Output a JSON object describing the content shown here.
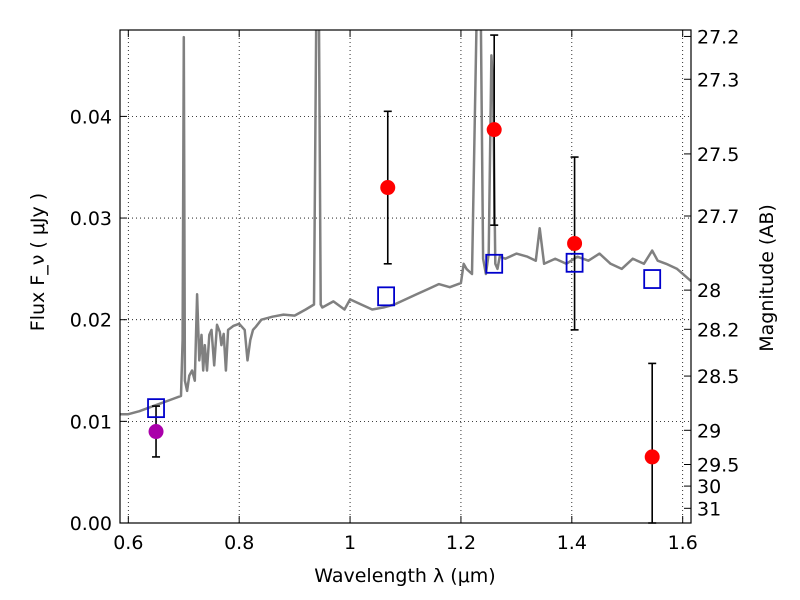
{
  "chart_data": {
    "type": "scatter",
    "xlabel": "Wavelength  λ (μm)",
    "ylabel": "Flux  F_ν  ( μJy )",
    "ylabel_right": "Magnitude (AB)",
    "xlim": [
      0.585,
      1.615
    ],
    "ylim": [
      0.0,
      0.0485
    ],
    "grid": true,
    "x_ticks": [
      0.6,
      0.8,
      1.0,
      1.2,
      1.4,
      1.6
    ],
    "x_tick_labels": [
      "0.6",
      "0.8",
      "1",
      "1.2",
      "1.4",
      "1.6"
    ],
    "y_ticks": [
      0.0,
      0.01,
      0.02,
      0.03,
      0.04
    ],
    "y_tick_labels": [
      "0.00",
      "0.01",
      "0.02",
      "0.03",
      "0.04"
    ],
    "right_ticks": [
      27.2,
      27.3,
      27.5,
      27.7,
      28,
      28.2,
      28.5,
      29,
      29.5,
      30,
      31
    ],
    "right_tick_labels": [
      "27.2",
      "27.3",
      "27.5",
      "27.7",
      "28",
      "28.2",
      "28.5",
      "29",
      "29.5",
      "30",
      "31"
    ],
    "model_spectrum": {
      "color": "#808080",
      "x": [
        0.585,
        0.6,
        0.62,
        0.64,
        0.66,
        0.68,
        0.695,
        0.698,
        0.7,
        0.702,
        0.706,
        0.71,
        0.715,
        0.72,
        0.724,
        0.728,
        0.732,
        0.735,
        0.738,
        0.742,
        0.746,
        0.75,
        0.755,
        0.76,
        0.765,
        0.768,
        0.772,
        0.776,
        0.78,
        0.79,
        0.8,
        0.81,
        0.815,
        0.82,
        0.825,
        0.83,
        0.84,
        0.86,
        0.88,
        0.9,
        0.92,
        0.935,
        0.939,
        0.941,
        0.944,
        0.947,
        0.95,
        0.97,
        0.99,
        1.0,
        1.02,
        1.04,
        1.06,
        1.08,
        1.1,
        1.12,
        1.14,
        1.16,
        1.18,
        1.2,
        1.205,
        1.21,
        1.22,
        1.228,
        1.232,
        1.236,
        1.24,
        1.245,
        1.25,
        1.255,
        1.258,
        1.262,
        1.266,
        1.27,
        1.28,
        1.3,
        1.32,
        1.335,
        1.342,
        1.35,
        1.37,
        1.39,
        1.41,
        1.43,
        1.45,
        1.47,
        1.49,
        1.51,
        1.53,
        1.545,
        1.555,
        1.57,
        1.59,
        1.615
      ],
      "y": [
        0.0107,
        0.0107,
        0.011,
        0.0114,
        0.0118,
        0.0122,
        0.0125,
        0.018,
        0.0478,
        0.014,
        0.013,
        0.0145,
        0.015,
        0.014,
        0.0225,
        0.016,
        0.0185,
        0.015,
        0.0175,
        0.015,
        0.0185,
        0.019,
        0.0155,
        0.0195,
        0.0188,
        0.0175,
        0.0186,
        0.015,
        0.019,
        0.0194,
        0.0196,
        0.019,
        0.016,
        0.018,
        0.019,
        0.0193,
        0.02,
        0.0203,
        0.0205,
        0.0204,
        0.021,
        0.0215,
        0.049,
        0.049,
        0.049,
        0.0215,
        0.0212,
        0.0218,
        0.021,
        0.022,
        0.0215,
        0.021,
        0.0212,
        0.0215,
        0.022,
        0.0225,
        0.023,
        0.0235,
        0.0232,
        0.0236,
        0.0255,
        0.025,
        0.0245,
        0.049,
        0.049,
        0.049,
        0.026,
        0.0245,
        0.0265,
        0.046,
        0.043,
        0.0255,
        0.025,
        0.0262,
        0.026,
        0.0265,
        0.0262,
        0.0258,
        0.029,
        0.0255,
        0.026,
        0.0255,
        0.0262,
        0.0258,
        0.0265,
        0.0255,
        0.025,
        0.026,
        0.0255,
        0.0268,
        0.0258,
        0.0255,
        0.025,
        0.0238
      ]
    },
    "model_photometry": {
      "color": "#0000cc",
      "x": [
        0.65,
        1.065,
        1.26,
        1.405,
        1.545
      ],
      "y": [
        0.0113,
        0.0223,
        0.0255,
        0.0256,
        0.024
      ]
    },
    "observed": [
      {
        "x": 0.65,
        "y": 0.009,
        "err_low": 0.0065,
        "err_high": 0.0115,
        "color": "#aa00aa"
      },
      {
        "x": 1.068,
        "y": 0.033,
        "err_low": 0.0255,
        "err_high": 0.0405,
        "color": "#ff0000"
      },
      {
        "x": 1.26,
        "y": 0.0387,
        "err_low": 0.0293,
        "err_high": 0.048,
        "color": "#ff0000"
      },
      {
        "x": 1.405,
        "y": 0.0275,
        "err_low": 0.019,
        "err_high": 0.036,
        "color": "#ff0000"
      },
      {
        "x": 1.545,
        "y": 0.0065,
        "err_low": 0.0,
        "err_high": 0.0157,
        "color": "#ff0000"
      }
    ]
  }
}
